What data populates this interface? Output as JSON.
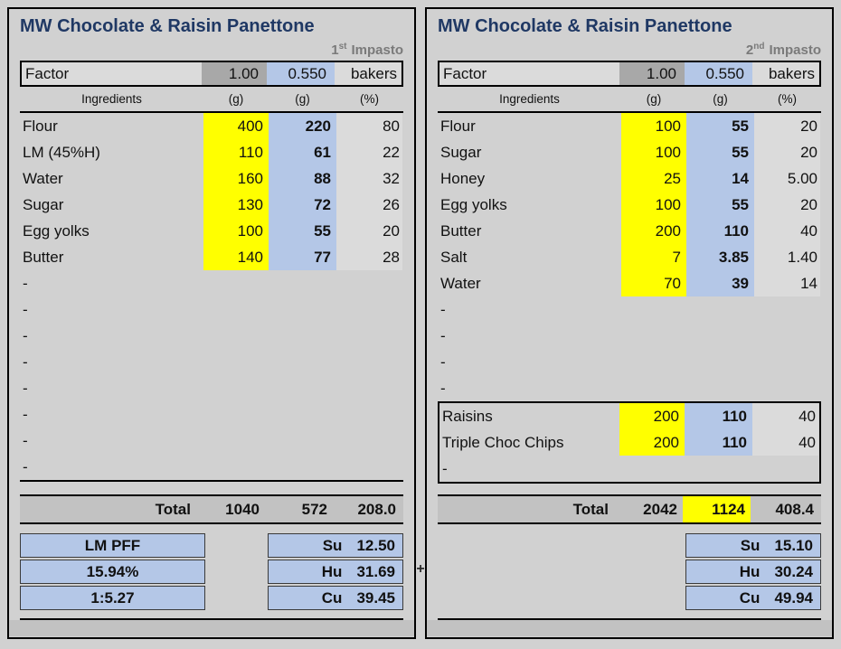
{
  "colors": {
    "yellow": "#ffff00",
    "blue": "#b4c7e7",
    "factor_gray": "#a8a8a8",
    "cell_gray": "#dbdbdb",
    "total_gray": "#c2c2c2",
    "page_gray": "#d1d1d1",
    "title_navy": "#1f3864",
    "impasto_gray": "#7a7a7a"
  },
  "plus": "+",
  "panels": [
    {
      "title": "MW Chocolate & Raisin Panettone",
      "impasto": {
        "number": "1",
        "ordinal": "st",
        "word": "Impasto"
      },
      "factor": {
        "label": "Factor",
        "base": "1.00",
        "multiplier": "0.550",
        "unit": "bakers"
      },
      "headers": {
        "ingredients": "Ingredients",
        "grams": "(g)",
        "grams_scaled": "(g)",
        "percent": "(%)"
      },
      "ingredients": [
        {
          "name": "Flour",
          "g": "400",
          "g_scaled": "220",
          "pct": "80"
        },
        {
          "name": "LM (45%H)",
          "g": "110",
          "g_scaled": "61",
          "pct": "22"
        },
        {
          "name": "Water",
          "g": "160",
          "g_scaled": "88",
          "pct": "32"
        },
        {
          "name": "Sugar",
          "g": "130",
          "g_scaled": "72",
          "pct": "26"
        },
        {
          "name": "Egg yolks",
          "g": "100",
          "g_scaled": "55",
          "pct": "20"
        },
        {
          "name": "Butter",
          "g": "140",
          "g_scaled": "77",
          "pct": "28"
        }
      ],
      "empty_rows": [
        "-",
        "-",
        "-",
        "-",
        "-",
        "-",
        "-",
        "-"
      ],
      "total": {
        "label": "Total",
        "g": "1040",
        "g_scaled": "572",
        "pct": "208.0"
      },
      "stats_left": {
        "rows": [
          "LM PFF",
          "15.94%",
          "1:5.27"
        ]
      },
      "stats_right": {
        "rows": [
          {
            "label": "Su",
            "value": "12.50"
          },
          {
            "label": "Hu",
            "value": "31.69"
          },
          {
            "label": "Cu",
            "value": "39.45"
          }
        ]
      }
    },
    {
      "title": "MW Chocolate & Raisin Panettone",
      "impasto": {
        "number": "2",
        "ordinal": "nd",
        "word": "Impasto"
      },
      "factor": {
        "label": "Factor",
        "base": "1.00",
        "multiplier": "0.550",
        "unit": "bakers"
      },
      "headers": {
        "ingredients": "Ingredients",
        "grams": "(g)",
        "grams_scaled": "(g)",
        "percent": "(%)"
      },
      "ingredients": [
        {
          "name": "Flour",
          "g": "100",
          "g_scaled": "55",
          "pct": "20"
        },
        {
          "name": "Sugar",
          "g": "100",
          "g_scaled": "55",
          "pct": "20"
        },
        {
          "name": "Honey",
          "g": "25",
          "g_scaled": "14",
          "pct": "5.00"
        },
        {
          "name": "Egg yolks",
          "g": "100",
          "g_scaled": "55",
          "pct": "20"
        },
        {
          "name": "Butter",
          "g": "200",
          "g_scaled": "110",
          "pct": "40"
        },
        {
          "name": "Salt",
          "g": "7",
          "g_scaled": "3.85",
          "pct": "1.40"
        },
        {
          "name": "Water",
          "g": "70",
          "g_scaled": "39",
          "pct": "14"
        }
      ],
      "empty_rows": [
        "-",
        "-",
        "-",
        "-"
      ],
      "boxed_ingredients": [
        {
          "name": "Raisins",
          "g": "200",
          "g_scaled": "110",
          "pct": "40"
        },
        {
          "name": "Triple Choc Chips",
          "g": "200",
          "g_scaled": "110",
          "pct": "40"
        }
      ],
      "boxed_empty_rows": [
        "-"
      ],
      "total": {
        "label": "Total",
        "g": "2042",
        "g_scaled": "1124",
        "pct": "408.4"
      },
      "stats_right": {
        "rows": [
          {
            "label": "Su",
            "value": "15.10"
          },
          {
            "label": "Hu",
            "value": "30.24"
          },
          {
            "label": "Cu",
            "value": "49.94"
          }
        ]
      }
    }
  ]
}
